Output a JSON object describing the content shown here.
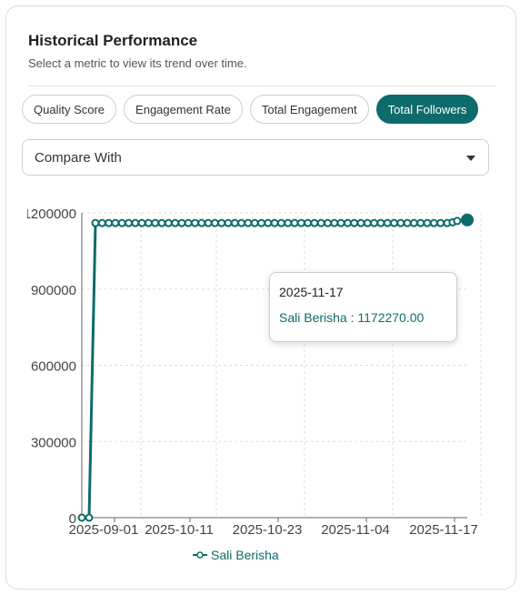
{
  "header": {
    "title": "Historical Performance",
    "subtitle": "Select a metric to view its trend over time."
  },
  "metrics": [
    {
      "label": "Quality Score",
      "active": false
    },
    {
      "label": "Engagement Rate",
      "active": false
    },
    {
      "label": "Total Engagement",
      "active": false
    },
    {
      "label": "Total Followers",
      "active": true
    }
  ],
  "compare": {
    "label": "Compare With",
    "icon": "chevron-down-icon"
  },
  "colors": {
    "accent": "#0e6b6b",
    "grid": "#dedede"
  },
  "tooltip": {
    "date": "2025-11-17",
    "series": "Sali Berisha",
    "value": "1172270.00"
  },
  "chart_data": {
    "type": "line",
    "y_tick_labels": [
      "0",
      "300000",
      "600000",
      "900000",
      "1200000"
    ],
    "y_tick_labels_visible": [
      "0",
      "300000",
      "600000",
      "900000",
      "1200000"
    ],
    "x_tick_labels": [
      "2025-09-01",
      "2025-10-11",
      "2025-10-23",
      "2025-11-04",
      "2025-11-17"
    ],
    "ylim": [
      0,
      1200000
    ],
    "grid": true,
    "legend": "bottom",
    "series": [
      {
        "name": "Sali Berisha",
        "color": "#0e6b6b",
        "points_before_jump": 2,
        "low_value": 0,
        "plateau_value": 1160000,
        "plateau_points": 54,
        "final_values": [
          1163000,
          1168000,
          1172270
        ]
      }
    ]
  }
}
